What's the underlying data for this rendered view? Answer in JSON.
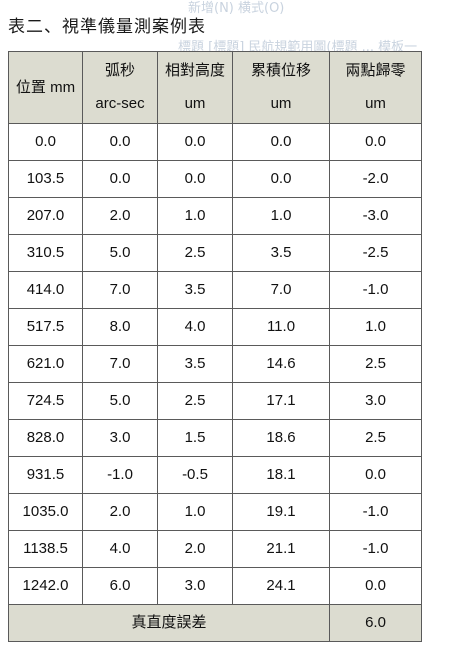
{
  "title": "表二、視準儀量測案例表",
  "background_fragments": {
    "top_text": "新增(N)    横式(O)",
    "bottom_text": "標題 [標題] 民航規範用圖(標題 ... 模板一"
  },
  "table": {
    "headers": [
      {
        "line1": "位置 mm",
        "line2": ""
      },
      {
        "line1": "弧秒",
        "line2": "arc-sec"
      },
      {
        "line1": "相對高度",
        "line2": "um"
      },
      {
        "line1": "累積位移",
        "line2": "um"
      },
      {
        "line1": "兩點歸零",
        "line2": "um"
      }
    ],
    "rows": [
      [
        "0.0",
        "0.0",
        "0.0",
        "0.0",
        "0.0"
      ],
      [
        "103.5",
        "0.0",
        "0.0",
        "0.0",
        "-2.0"
      ],
      [
        "207.0",
        "2.0",
        "1.0",
        "1.0",
        "-3.0"
      ],
      [
        "310.5",
        "5.0",
        "2.5",
        "3.5",
        "-2.5"
      ],
      [
        "414.0",
        "7.0",
        "3.5",
        "7.0",
        "-1.0"
      ],
      [
        "517.5",
        "8.0",
        "4.0",
        "11.0",
        "1.0"
      ],
      [
        "621.0",
        "7.0",
        "3.5",
        "14.6",
        "2.5"
      ],
      [
        "724.5",
        "5.0",
        "2.5",
        "17.1",
        "3.0"
      ],
      [
        "828.0",
        "3.0",
        "1.5",
        "18.6",
        "2.5"
      ],
      [
        "931.5",
        "-1.0",
        "-0.5",
        "18.1",
        "0.0"
      ],
      [
        "1035.0",
        "2.0",
        "1.0",
        "19.1",
        "-1.0"
      ],
      [
        "1138.5",
        "4.0",
        "2.0",
        "21.1",
        "-1.0"
      ],
      [
        "1242.0",
        "6.0",
        "3.0",
        "24.1",
        "0.0"
      ]
    ],
    "footer": {
      "label": "真直度誤差",
      "value": "6.0"
    }
  },
  "colors": {
    "header_bg": "#dcdcd0",
    "border": "#5a5a5a",
    "background_fragment": "#c9d3df"
  }
}
